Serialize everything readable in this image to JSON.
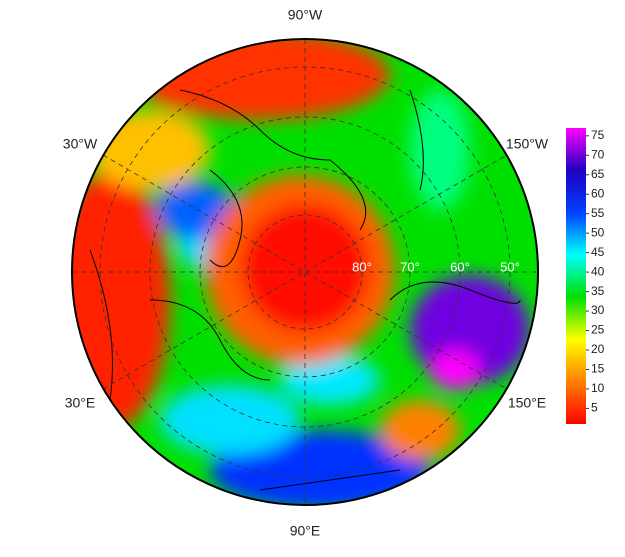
{
  "longitude_labels": {
    "top": "90°W",
    "upper_left": "30°W",
    "upper_right": "150°W",
    "lower_left": "30°E",
    "lower_right": "150°E",
    "bottom": "90°E"
  },
  "latitude_labels": [
    "80°",
    "70°",
    "60°",
    "50°"
  ],
  "colorbar": {
    "lim": [
      1,
      77
    ],
    "ticks": [
      5,
      10,
      15,
      20,
      25,
      30,
      35,
      40,
      45,
      50,
      55,
      60,
      65,
      70,
      75
    ],
    "colors": [
      "#ff0000",
      "#ff8000",
      "#ffff00",
      "#00e000",
      "#00ffff",
      "#0040ff",
      "#2000c0",
      "#ff00ff"
    ]
  }
}
